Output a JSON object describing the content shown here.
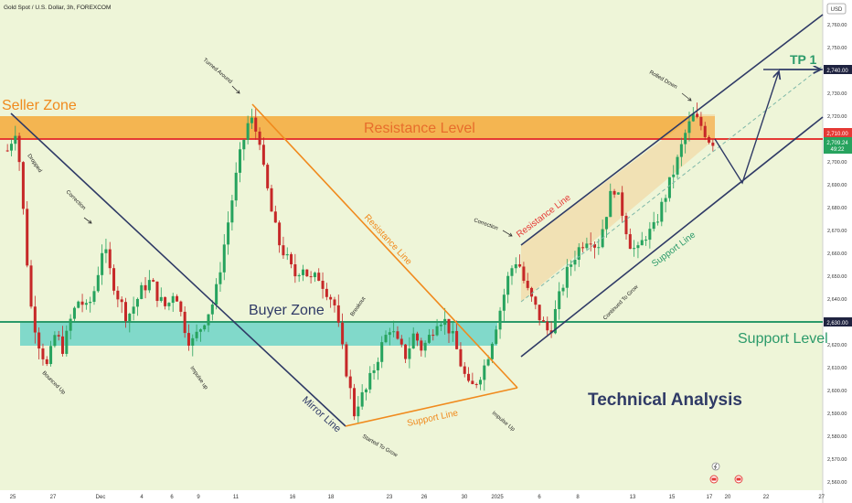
{
  "header": {
    "symbol_title": "Gold Spot / U.S. Dollar, 3h, FOREXCOM",
    "currency": "USD"
  },
  "chart_data": {
    "type": "candlestick",
    "title": "Gold Spot / U.S. Dollar, 3h, FOREXCOM",
    "ylim": [
      2555,
      2780
    ],
    "y_ticks": [
      2560,
      2570,
      2580,
      2590,
      2600,
      2610,
      2620,
      2630,
      2640,
      2650,
      2660,
      2670,
      2680,
      2690,
      2700,
      2710,
      2720,
      2730,
      2740,
      2750,
      2760
    ],
    "x_ticks": [
      "25",
      "27",
      "Dec",
      "4",
      "6",
      "9",
      "11",
      "16",
      "18",
      "23",
      "26",
      "30",
      "2025",
      "6",
      "8",
      "13",
      "15",
      "17",
      "20",
      "22",
      "27"
    ],
    "price_labels": {
      "tp_price": "2,740.00",
      "current_price": "2,710.00",
      "last_price": "2,709.24",
      "countdown": "49:22",
      "support_price": "2,630.00"
    },
    "levels": {
      "tp": 2740,
      "resistance_line": 2710,
      "support_line": 2630,
      "resistance_zone": [
        2707,
        2720
      ],
      "support_zone": [
        2620,
        2631
      ]
    },
    "series_path": [
      [
        0,
        2705
      ],
      [
        2,
        2714
      ],
      [
        3,
        2700
      ],
      [
        5,
        2655
      ],
      [
        6,
        2635
      ],
      [
        8,
        2620
      ],
      [
        10,
        2610
      ],
      [
        12,
        2625
      ],
      [
        14,
        2618
      ],
      [
        16,
        2632
      ],
      [
        18,
        2640
      ],
      [
        20,
        2635
      ],
      [
        22,
        2645
      ],
      [
        24,
        2664
      ],
      [
        26,
        2650
      ],
      [
        28,
        2640
      ],
      [
        30,
        2632
      ],
      [
        32,
        2638
      ],
      [
        34,
        2645
      ],
      [
        36,
        2648
      ],
      [
        38,
        2640
      ],
      [
        40,
        2636
      ],
      [
        42,
        2645
      ],
      [
        44,
        2630
      ],
      [
        46,
        2620
      ],
      [
        48,
        2626
      ],
      [
        50,
        2633
      ],
      [
        52,
        2640
      ],
      [
        54,
        2660
      ],
      [
        56,
        2680
      ],
      [
        58,
        2700
      ],
      [
        60,
        2715
      ],
      [
        61,
        2720
      ],
      [
        62,
        2713
      ],
      [
        63,
        2715
      ],
      [
        64,
        2698
      ],
      [
        65,
        2690
      ],
      [
        66,
        2680
      ],
      [
        68,
        2665
      ],
      [
        70,
        2658
      ],
      [
        72,
        2650
      ],
      [
        74,
        2655
      ],
      [
        76,
        2648
      ],
      [
        78,
        2650
      ],
      [
        80,
        2644
      ],
      [
        82,
        2638
      ],
      [
        84,
        2618
      ],
      [
        86,
        2600
      ],
      [
        87,
        2590
      ],
      [
        88,
        2595
      ],
      [
        90,
        2600
      ],
      [
        92,
        2610
      ],
      [
        94,
        2620
      ],
      [
        96,
        2628
      ],
      [
        98,
        2620
      ],
      [
        100,
        2615
      ],
      [
        102,
        2625
      ],
      [
        104,
        2618
      ],
      [
        106,
        2624
      ],
      [
        108,
        2632
      ],
      [
        110,
        2630
      ],
      [
        112,
        2622
      ],
      [
        114,
        2610
      ],
      [
        116,
        2600
      ],
      [
        118,
        2605
      ],
      [
        120,
        2612
      ],
      [
        122,
        2625
      ],
      [
        124,
        2638
      ],
      [
        126,
        2652
      ],
      [
        128,
        2658
      ],
      [
        130,
        2645
      ],
      [
        132,
        2638
      ],
      [
        134,
        2630
      ],
      [
        136,
        2625
      ],
      [
        138,
        2638
      ],
      [
        140,
        2650
      ],
      [
        142,
        2658
      ],
      [
        144,
        2664
      ],
      [
        146,
        2668
      ],
      [
        148,
        2662
      ],
      [
        150,
        2676
      ],
      [
        152,
        2690
      ],
      [
        154,
        2680
      ],
      [
        156,
        2665
      ],
      [
        158,
        2660
      ],
      [
        160,
        2668
      ],
      [
        162,
        2670
      ],
      [
        164,
        2680
      ],
      [
        166,
        2690
      ],
      [
        168,
        2700
      ],
      [
        170,
        2712
      ],
      [
        172,
        2720
      ],
      [
        174,
        2716
      ],
      [
        176,
        2710
      ],
      [
        177,
        2709
      ]
    ],
    "annotations": {
      "seller_zone": "Seller Zone",
      "resistance_level": "Resistance Level",
      "buyer_zone": "Buyer Zone",
      "support_level": "Support Level",
      "resistance_line_left": "Resistance Line",
      "resistance_line_right": "Resistance Line",
      "support_line_left": "Support Line",
      "support_line_right": "Support Line",
      "mirror_line": "Mirror Line",
      "tp1": "TP 1",
      "technical_analysis": "Technical Analysis",
      "dropped": "Dropped",
      "correction_left": "Correction",
      "bounced_up": "Bounced Up",
      "impulse_up_left": "Impulse up",
      "turned_around": "Turned Around",
      "breakout": "Breakout",
      "started_to_grow": "Started To Grow",
      "impulse_up_right": "Impulse Up",
      "correction_right": "Correction",
      "continued_to_grow": "Continued To Grow",
      "rolled_down": "Rolled Down"
    },
    "colors": {
      "background": "#eef5d8",
      "resistance_zone": "#f4a93a",
      "support_zone": "#6dd3c8",
      "support_line": "#2b9a6a",
      "resistance_red": "#e53935",
      "orange": "#f08a1d",
      "navy": "#2f3a66",
      "candle_up": "#27a35e",
      "candle_down": "#c62828"
    }
  }
}
